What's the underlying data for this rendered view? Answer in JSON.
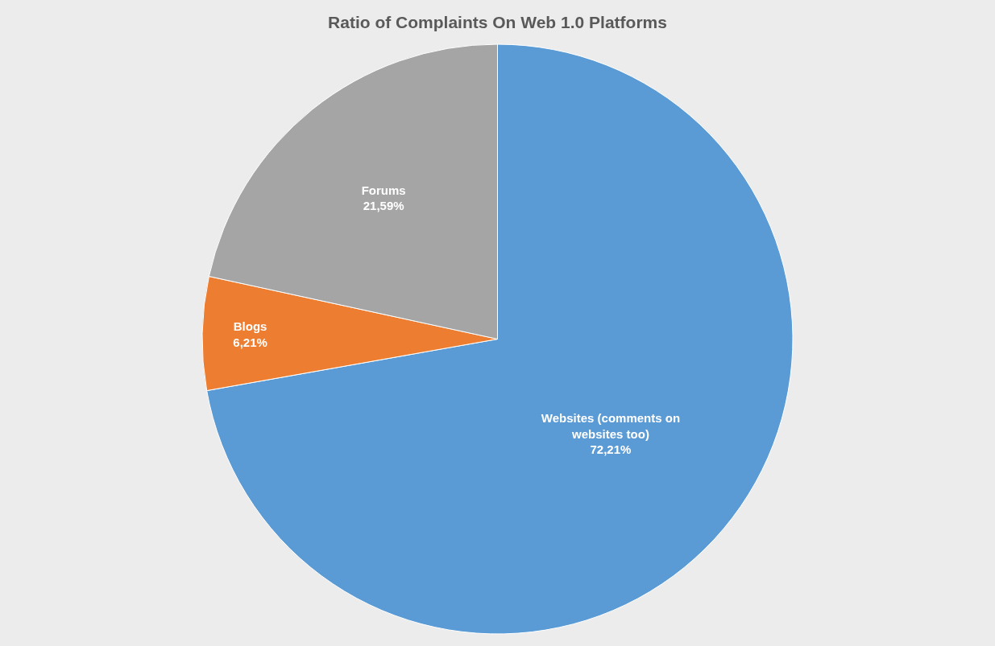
{
  "chart_data": {
    "type": "pie",
    "title": "Ratio of Complaints On Web 1.0 Platforms",
    "categories": [
      "Websites (comments on websites too)",
      "Blogs",
      "Forums"
    ],
    "values": [
      72.21,
      6.21,
      21.59
    ],
    "value_labels": [
      "72,21%",
      "6,21%",
      "21,59%"
    ],
    "colors": [
      "#5b9bd5",
      "#ed7d31",
      "#a5a5a5"
    ],
    "legend": false
  }
}
